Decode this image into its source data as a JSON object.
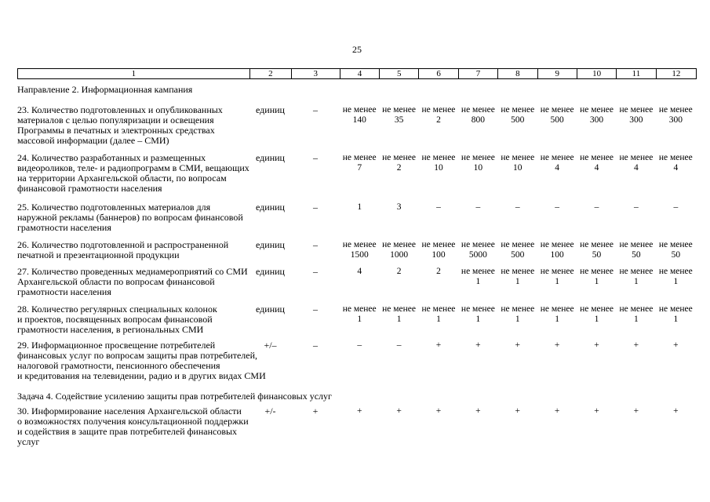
{
  "page": {
    "number": "25"
  },
  "table": {
    "header_cols": [
      "1",
      "2",
      "3",
      "4",
      "5",
      "6",
      "7",
      "8",
      "9",
      "10",
      "11",
      "12"
    ],
    "section_heading": "Направление 2. Информационная кампания",
    "task_heading": "Задача 4. Содействие усилению защиты прав потребителей финансовых услуг",
    "rows": [
      {
        "label": "23. Количество подготовленных и опубликованных\nматериалов с целью популяризации и освещения\nПрограммы в печатных и электронных средствах\nмассовой информации (далее – СМИ)",
        "unit": "единиц",
        "col3": "–",
        "values": [
          "не менее\n140",
          "не менее\n35",
          "не менее\n2",
          "не менее\n800",
          "не менее\n500",
          "не менее\n500",
          "не менее\n300",
          "не менее\n300",
          "не менее\n300"
        ]
      },
      {
        "label": "24. Количество разработанных и размещенных\nвидеороликов, теле- и радиопрограмм в СМИ, вещающих\nна территории Архангельской области, по вопросам\nфинансовой грамотности населения",
        "unit": "единиц",
        "col3": "–",
        "values": [
          "не менее\n7",
          "не менее\n2",
          "не менее\n10",
          "не менее\n10",
          "не менее\n10",
          "не менее\n4",
          "не менее\n4",
          "не менее\n4",
          "не менее\n4"
        ]
      },
      {
        "label": "25. Количество подготовленных материалов для\nнаружной рекламы (баннеров) по вопросам финансовой\nграмотности населения",
        "unit": "единиц",
        "col3": "–",
        "values": [
          "1",
          "3",
          "–",
          "–",
          "–",
          "–",
          "–",
          "–",
          "–"
        ]
      },
      {
        "label": "26. Количество подготовленной и распространенной\nпечатной и презентационной продукции",
        "unit": "единиц",
        "col3": "–",
        "values": [
          "не менее\n1500",
          "не менее\n1000",
          "не менее\n100",
          "не менее\n5000",
          "не менее\n500",
          "не менее\n100",
          "не менее\n50",
          "не менее\n50",
          "не менее\n50"
        ]
      },
      {
        "label": "27. Количество проведенных медиамероприятий со СМИ\nАрхангельской области по вопросам финансовой\nграмотности населения",
        "unit": "единиц",
        "col3": "–",
        "values": [
          "4",
          "2",
          "2",
          "не менее\n1",
          "не менее\n1",
          "не менее\n1",
          "не менее\n1",
          "не менее\n1",
          "не менее\n1"
        ]
      },
      {
        "label": "28. Количество регулярных специальных колонок\nи проектов, посвященных вопросам финансовой\nграмотности населения, в региональных СМИ",
        "unit": "единиц",
        "col3": "–",
        "values": [
          "не менее\n1",
          "не менее\n1",
          "не менее\n1",
          "не менее\n1",
          "не менее\n1",
          "не менее\n1",
          "не менее\n1",
          "не менее\n1",
          "не менее\n1"
        ]
      },
      {
        "label": "29. Информационное просвещение потребителей\nфинансовых услуг по вопросам защиты прав потребителей,\nналоговой грамотности, пенсионного обеспечения\nи кредитования на телевидении, радио и в других видах СМИ",
        "unit": "+/–",
        "col3": "–",
        "values": [
          "–",
          "–",
          "+",
          "+",
          "+",
          "+",
          "+",
          "+",
          "+"
        ]
      },
      {
        "label": "30. Информирование населения Архангельской области\nо возможностях получения консультационной поддержки\nи содействия в защите прав потребителей финансовых\nуслуг",
        "unit": "+/-",
        "col3": "+",
        "values": [
          "+",
          "+",
          "+",
          "+",
          "+",
          "+",
          "+",
          "+",
          "+"
        ]
      }
    ]
  }
}
